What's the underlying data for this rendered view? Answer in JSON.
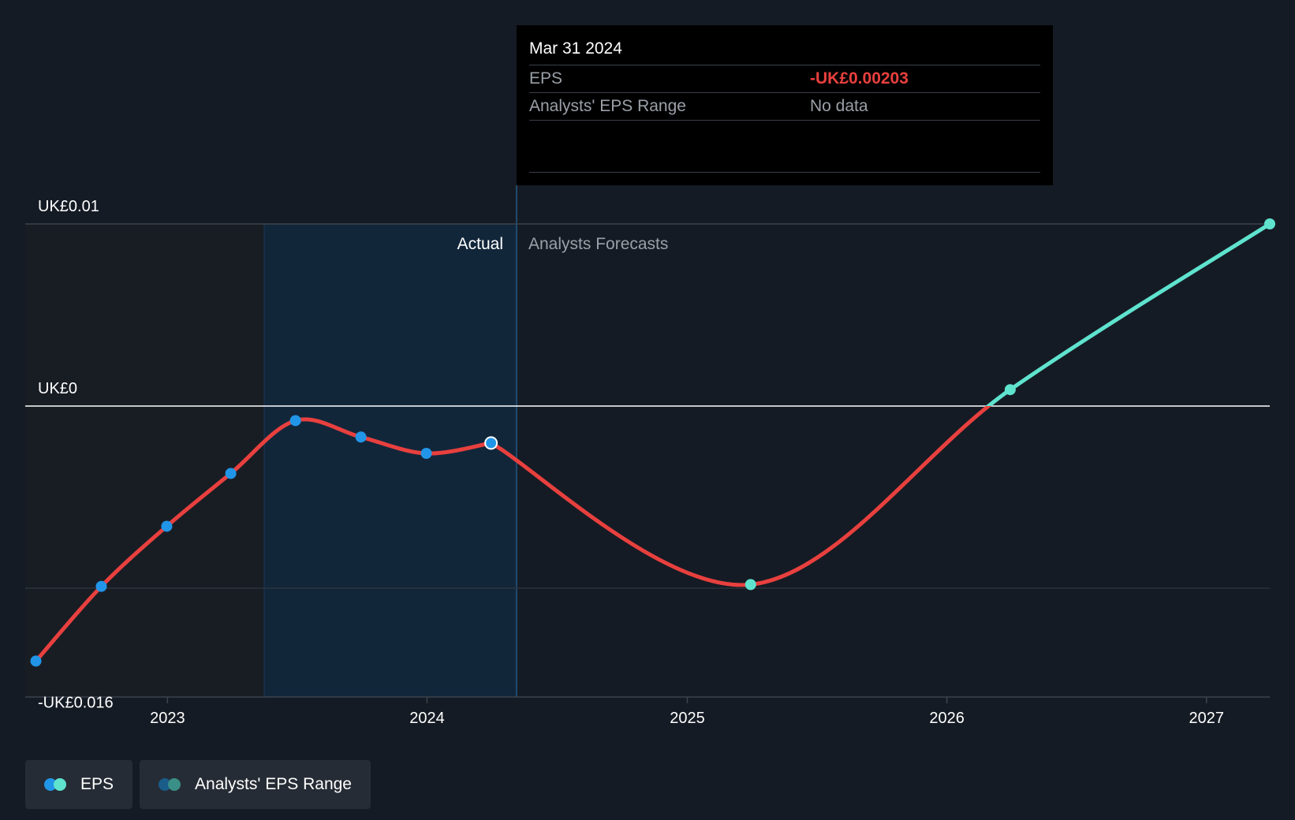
{
  "tooltip": {
    "date": "Mar 31 2024",
    "rows": [
      {
        "label": "EPS",
        "value": "-UK£0.00203"
      },
      {
        "label": "Analysts' EPS Range",
        "value": "No data"
      }
    ]
  },
  "regions": {
    "actual_label": "Actual",
    "forecast_label": "Analysts Forecasts"
  },
  "legend": [
    {
      "label": "EPS",
      "colors": [
        "#2196e8",
        "#5fe3cf"
      ]
    },
    {
      "label": "Analysts' EPS Range",
      "colors": [
        "#1a5d8a",
        "#3a8f86"
      ]
    }
  ],
  "colors": {
    "actual_point": "#2196e8",
    "forecast_point": "#5fe3cf",
    "negative_line": "#e8403e",
    "positive_line": "#5fe3cf"
  },
  "chart_data": {
    "type": "line",
    "ylim": [
      -0.016,
      0.01
    ],
    "xlim": [
      "2022-06-15",
      "2027-03-31"
    ],
    "y_tick_labels": [
      {
        "value": 0.01,
        "label": "UK£0.01"
      },
      {
        "value": 0,
        "label": "UK£0"
      },
      {
        "value": -0.016,
        "label": "-UK£0.016"
      }
    ],
    "x_ticks": [
      "2023",
      "2024",
      "2025",
      "2026",
      "2027"
    ],
    "actual_period": [
      "2023-03-31",
      "2024-03-31"
    ],
    "series": [
      {
        "name": "EPS",
        "type": "actual",
        "points": [
          {
            "x": "2022-06-30",
            "y": -0.014
          },
          {
            "x": "2022-09-30",
            "y": -0.0099
          },
          {
            "x": "2022-12-31",
            "y": -0.0066
          },
          {
            "x": "2023-03-31",
            "y": -0.0037
          },
          {
            "x": "2023-06-30",
            "y": -0.0008
          },
          {
            "x": "2023-09-30",
            "y": -0.0017
          },
          {
            "x": "2023-12-31",
            "y": -0.0026
          },
          {
            "x": "2024-03-31",
            "y": -0.00203
          }
        ]
      },
      {
        "name": "EPS",
        "type": "forecast",
        "points": [
          {
            "x": "2024-03-31",
            "y": -0.00203
          },
          {
            "x": "2025-03-31",
            "y": -0.0098
          },
          {
            "x": "2026-03-31",
            "y": 0.0009
          },
          {
            "x": "2027-03-31",
            "y": 0.01
          }
        ]
      }
    ],
    "highlight": {
      "x": "2024-03-31",
      "y": -0.00203
    }
  }
}
